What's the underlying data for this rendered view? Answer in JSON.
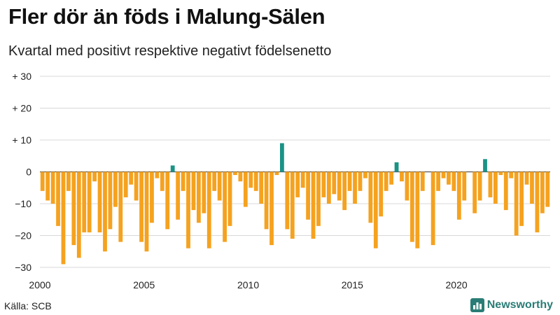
{
  "title": "Fler dör än föds i Malung-Sälen",
  "subtitle": "Kvartal med positivt respektive negativt födelsenetto",
  "source": "Källa: SCB",
  "brand": {
    "name": "Newsworthy",
    "icon": "newsworthy-chart-icon"
  },
  "colors": {
    "positive": "#1a9385",
    "negative": "#f5a21f",
    "grid": "#d8d8d8",
    "zero": "#555555",
    "brand": "#2a7d76"
  },
  "chart_data": {
    "type": "bar",
    "title": "Fler dör än föds i Malung-Sälen",
    "subtitle": "Kvartal med positivt respektive negativt födelsenetto",
    "xlabel": "",
    "ylabel": "",
    "ylim": [
      -30,
      30
    ],
    "yticks": [
      30,
      20,
      10,
      0,
      -10,
      -20,
      -30
    ],
    "ytick_labels": [
      "+ 30",
      "+ 20",
      "+ 10",
      "0",
      "−10",
      "−20",
      "−30"
    ],
    "xtick_labels": [
      "2000",
      "2005",
      "2010",
      "2015",
      "2020"
    ],
    "grid": true,
    "start_year": 2000,
    "values": [
      -6,
      -9,
      -10,
      -17,
      -29,
      -6,
      -23,
      -27,
      -19,
      -19,
      -3,
      -19,
      -25,
      -18,
      -11,
      -22,
      -8,
      -4,
      -9,
      -22,
      -25,
      -16,
      -2,
      -6,
      -18,
      2,
      -15,
      -6,
      -24,
      -12,
      -16,
      -13,
      -24,
      -6,
      -9,
      -22,
      -17,
      -1,
      -3,
      -11,
      -5,
      -6,
      -10,
      -18,
      -23,
      -1,
      9,
      -18,
      -21,
      -8,
      -5,
      -15,
      -21,
      -17,
      -8,
      -10,
      -7,
      -9,
      -12,
      -6,
      -10,
      -6,
      -2,
      -16,
      -24,
      -14,
      -6,
      -4,
      3,
      -3,
      -9,
      -22,
      -24,
      -6,
      0,
      -23,
      -6,
      -2,
      -4,
      -6,
      -15,
      -9,
      0,
      -13,
      -9,
      4,
      -8,
      -10,
      -1,
      -12,
      -2,
      -20,
      -17,
      -4,
      -10,
      -19,
      -13,
      -11
    ]
  }
}
